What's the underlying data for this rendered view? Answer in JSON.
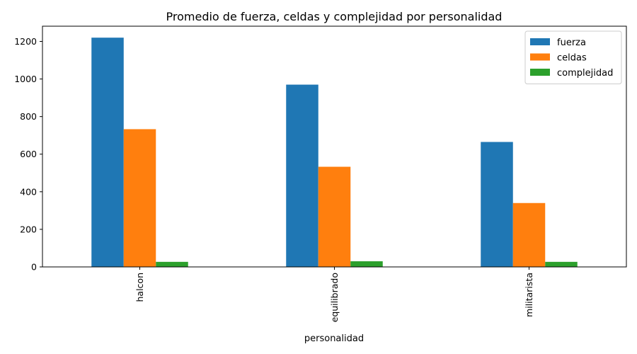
{
  "chart_data": {
    "type": "bar",
    "title": "Promedio de fuerza, celdas y complejidad por personalidad",
    "xlabel": "personalidad",
    "ylabel": "",
    "categories": [
      "halcon",
      "equilibrado",
      "militarista"
    ],
    "series": [
      {
        "name": "fuerza",
        "values": [
          1220,
          970,
          665
        ],
        "color": "#1f77b4"
      },
      {
        "name": "celdas",
        "values": [
          733,
          533,
          340
        ],
        "color": "#ff7f0e"
      },
      {
        "name": "complejidad",
        "values": [
          27,
          30,
          27
        ],
        "color": "#2ca02c"
      }
    ],
    "ylim": [
      0,
      1281
    ],
    "yticks": [
      0,
      200,
      400,
      600,
      800,
      1000,
      1200
    ],
    "grid": false,
    "legend_position": "top-right",
    "xtick_rotation": 90
  }
}
